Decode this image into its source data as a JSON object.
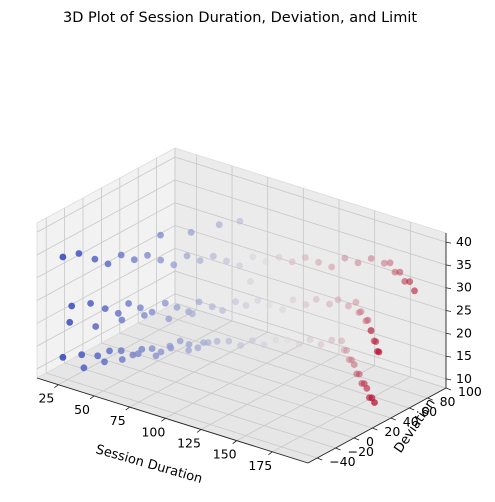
{
  "chart_data": {
    "type": "scatter",
    "title": "3D Plot of Session Duration, Deviation, and Limit",
    "xlabel": "Session Duration",
    "ylabel": "Deviation",
    "zlabel": "",
    "xlim": [
      10,
      200
    ],
    "ylim": [
      -50,
      100
    ],
    "zlim": [
      8,
      42
    ],
    "x_ticks": [
      25,
      50,
      75,
      100,
      125,
      150,
      175
    ],
    "y_ticks": [
      -40,
      -20,
      0,
      20,
      40,
      60,
      80,
      100
    ],
    "z_ticks": [
      10,
      15,
      20,
      25,
      30,
      35,
      40
    ],
    "x_tick_labels": [
      "25",
      "50",
      "75",
      "100",
      "125",
      "150",
      "175"
    ],
    "y_tick_labels": [
      "−40",
      "−20",
      "0",
      "20",
      "40",
      "60",
      "80",
      "100"
    ],
    "z_tick_labels": [
      "10",
      "15",
      "20",
      "25",
      "30",
      "35",
      "40"
    ],
    "grid": true,
    "colormap": "coolwarm",
    "colors": {
      "low": "#3b4cc0",
      "mid": "#dddddd",
      "high": "#b40426"
    },
    "points": [
      {
        "x": 12,
        "y": -25,
        "z": 10
      },
      {
        "x": 22,
        "y": -20,
        "z": 11
      },
      {
        "x": 30,
        "y": -15,
        "z": 11
      },
      {
        "x": 35,
        "y": -10,
        "z": 12
      },
      {
        "x": 40,
        "y": -5,
        "z": 12
      },
      {
        "x": 45,
        "y": 0,
        "z": 11
      },
      {
        "x": 48,
        "y": 5,
        "z": 12
      },
      {
        "x": 52,
        "y": 10,
        "z": 12
      },
      {
        "x": 55,
        "y": 15,
        "z": 11
      },
      {
        "x": 58,
        "y": 20,
        "z": 12
      },
      {
        "x": 62,
        "y": 25,
        "z": 13
      },
      {
        "x": 65,
        "y": 30,
        "z": 12
      },
      {
        "x": 68,
        "y": 35,
        "z": 11
      },
      {
        "x": 72,
        "y": 40,
        "z": 12
      },
      {
        "x": 75,
        "y": 45,
        "z": 12
      },
      {
        "x": 30,
        "y": -30,
        "z": 10
      },
      {
        "x": 38,
        "y": -20,
        "z": 11
      },
      {
        "x": 44,
        "y": -10,
        "z": 11
      },
      {
        "x": 50,
        "y": -2,
        "z": 12
      },
      {
        "x": 56,
        "y": 8,
        "z": 11
      },
      {
        "x": 60,
        "y": 18,
        "z": 12
      },
      {
        "x": 66,
        "y": 28,
        "z": 11
      },
      {
        "x": 70,
        "y": 38,
        "z": 12
      },
      {
        "x": 80,
        "y": 50,
        "z": 12
      },
      {
        "x": 85,
        "y": 55,
        "z": 11
      },
      {
        "x": 90,
        "y": 60,
        "z": 12
      },
      {
        "x": 95,
        "y": 65,
        "z": 11
      },
      {
        "x": 100,
        "y": 70,
        "z": 12
      },
      {
        "x": 105,
        "y": 75,
        "z": 12
      },
      {
        "x": 110,
        "y": 80,
        "z": 11
      },
      {
        "x": 115,
        "y": 84,
        "z": 12
      },
      {
        "x": 120,
        "y": 88,
        "z": 11
      },
      {
        "x": 125,
        "y": 92,
        "z": 12
      },
      {
        "x": 130,
        "y": 95,
        "z": 12
      },
      {
        "x": 135,
        "y": 90,
        "z": 11
      },
      {
        "x": 140,
        "y": 85,
        "z": 12
      },
      {
        "x": 145,
        "y": 80,
        "z": 11
      },
      {
        "x": 150,
        "y": 75,
        "z": 12
      },
      {
        "x": 155,
        "y": 70,
        "z": 12
      },
      {
        "x": 160,
        "y": 65,
        "z": 11
      },
      {
        "x": 165,
        "y": 60,
        "z": 12
      },
      {
        "x": 170,
        "y": 55,
        "z": 11
      },
      {
        "x": 175,
        "y": 50,
        "z": 12
      },
      {
        "x": 180,
        "y": 45,
        "z": 12
      },
      {
        "x": 185,
        "y": 40,
        "z": 11
      },
      {
        "x": 190,
        "y": 35,
        "z": 12
      },
      {
        "x": 195,
        "y": 30,
        "z": 12
      },
      {
        "x": 15,
        "y": -20,
        "z": 21
      },
      {
        "x": 25,
        "y": -15,
        "z": 22
      },
      {
        "x": 32,
        "y": -10,
        "z": 21
      },
      {
        "x": 38,
        "y": -5,
        "z": 20
      },
      {
        "x": 42,
        "y": 0,
        "z": 22
      },
      {
        "x": 47,
        "y": 5,
        "z": 21
      },
      {
        "x": 52,
        "y": 10,
        "z": 20
      },
      {
        "x": 58,
        "y": 15,
        "z": 22
      },
      {
        "x": 63,
        "y": 20,
        "z": 21
      },
      {
        "x": 68,
        "y": 25,
        "z": 20
      },
      {
        "x": 72,
        "y": 30,
        "z": 22
      },
      {
        "x": 78,
        "y": 35,
        "z": 21
      },
      {
        "x": 82,
        "y": 40,
        "z": 20
      },
      {
        "x": 88,
        "y": 45,
        "z": 22
      },
      {
        "x": 20,
        "y": -30,
        "z": 19
      },
      {
        "x": 35,
        "y": -25,
        "z": 19
      },
      {
        "x": 45,
        "y": -12,
        "z": 20
      },
      {
        "x": 55,
        "y": -3,
        "z": 21
      },
      {
        "x": 65,
        "y": 8,
        "z": 20
      },
      {
        "x": 75,
        "y": 18,
        "z": 21
      },
      {
        "x": 92,
        "y": 50,
        "z": 21
      },
      {
        "x": 97,
        "y": 55,
        "z": 22
      },
      {
        "x": 102,
        "y": 60,
        "z": 21
      },
      {
        "x": 108,
        "y": 65,
        "z": 20
      },
      {
        "x": 112,
        "y": 70,
        "z": 22
      },
      {
        "x": 118,
        "y": 75,
        "z": 21
      },
      {
        "x": 122,
        "y": 80,
        "z": 22
      },
      {
        "x": 128,
        "y": 85,
        "z": 21
      },
      {
        "x": 132,
        "y": 88,
        "z": 22
      },
      {
        "x": 138,
        "y": 90,
        "z": 21
      },
      {
        "x": 142,
        "y": 92,
        "z": 22
      },
      {
        "x": 148,
        "y": 86,
        "z": 21
      },
      {
        "x": 152,
        "y": 82,
        "z": 22
      },
      {
        "x": 158,
        "y": 78,
        "z": 21
      },
      {
        "x": 162,
        "y": 74,
        "z": 22
      },
      {
        "x": 168,
        "y": 68,
        "z": 21
      },
      {
        "x": 172,
        "y": 62,
        "z": 22
      },
      {
        "x": 178,
        "y": 56,
        "z": 21
      },
      {
        "x": 183,
        "y": 50,
        "z": 22
      },
      {
        "x": 188,
        "y": 44,
        "z": 21
      },
      {
        "x": 193,
        "y": 38,
        "z": 22
      },
      {
        "x": 12,
        "y": -25,
        "z": 32
      },
      {
        "x": 20,
        "y": -20,
        "z": 33
      },
      {
        "x": 28,
        "y": -15,
        "z": 32
      },
      {
        "x": 34,
        "y": -10,
        "z": 31
      },
      {
        "x": 40,
        "y": -5,
        "z": 33
      },
      {
        "x": 46,
        "y": 0,
        "z": 32
      },
      {
        "x": 52,
        "y": 5,
        "z": 33
      },
      {
        "x": 58,
        "y": 10,
        "z": 32
      },
      {
        "x": 64,
        "y": 15,
        "z": 31
      },
      {
        "x": 70,
        "y": 20,
        "z": 33
      },
      {
        "x": 76,
        "y": 25,
        "z": 32
      },
      {
        "x": 82,
        "y": 30,
        "z": 33
      },
      {
        "x": 88,
        "y": 35,
        "z": 32
      },
      {
        "x": 94,
        "y": 40,
        "z": 31
      },
      {
        "x": 100,
        "y": 45,
        "z": 33
      },
      {
        "x": 106,
        "y": 50,
        "z": 32
      },
      {
        "x": 112,
        "y": 55,
        "z": 33
      },
      {
        "x": 118,
        "y": 60,
        "z": 32
      },
      {
        "x": 124,
        "y": 65,
        "z": 33
      },
      {
        "x": 130,
        "y": 70,
        "z": 32
      },
      {
        "x": 136,
        "y": 75,
        "z": 31
      },
      {
        "x": 142,
        "y": 80,
        "z": 33
      },
      {
        "x": 148,
        "y": 85,
        "z": 32
      },
      {
        "x": 154,
        "y": 90,
        "z": 33
      },
      {
        "x": 160,
        "y": 95,
        "z": 32
      },
      {
        "x": 166,
        "y": 92,
        "z": 33
      },
      {
        "x": 172,
        "y": 88,
        "z": 32
      },
      {
        "x": 178,
        "y": 84,
        "z": 33
      },
      {
        "x": 184,
        "y": 80,
        "z": 32
      },
      {
        "x": 190,
        "y": 76,
        "z": 33
      },
      {
        "x": 196,
        "y": 72,
        "z": 32
      },
      {
        "x": 108,
        "y": 30,
        "z": 30
      },
      {
        "x": 60,
        "y": 40,
        "z": 35
      },
      {
        "x": 70,
        "y": 55,
        "z": 36
      },
      {
        "x": 80,
        "y": 62,
        "z": 37
      },
      {
        "x": 45,
        "y": 30,
        "z": 34
      }
    ]
  }
}
